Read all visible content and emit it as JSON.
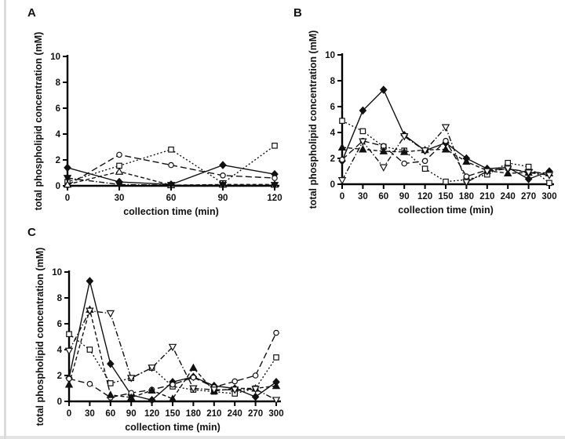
{
  "chart_data": [
    {
      "panel_label": "A",
      "type": "line",
      "title": "",
      "xlabel": "collection time (min)",
      "ylabel": "total phospholipid concentration (mM)",
      "x": [
        0,
        30,
        60,
        90,
        120
      ],
      "xlim": [
        0,
        120
      ],
      "ylim": [
        0,
        10
      ],
      "yticks": [
        0,
        2,
        4,
        6,
        8,
        10
      ],
      "grid": false,
      "legend": "none",
      "series": [
        {
          "name": "filled-diamond-solid",
          "marker": "diamond",
          "marker_fill": "filled",
          "line": "solid",
          "values": [
            1.4,
            0.3,
            0.1,
            1.6,
            0.9
          ]
        },
        {
          "name": "open-square-dotted",
          "marker": "square",
          "marker_fill": "open",
          "line": "dotted",
          "values": [
            0.3,
            1.55,
            2.8,
            0.2,
            3.1
          ]
        },
        {
          "name": "open-circle-long-dash",
          "marker": "circle",
          "marker_fill": "open",
          "line": "long-dash",
          "values": [
            0.05,
            2.4,
            1.6,
            0.8,
            0.6
          ]
        },
        {
          "name": "open-triangle-dash",
          "marker": "triangle-up",
          "marker_fill": "open",
          "line": "dash",
          "values": [
            0.1,
            1.1,
            0.05,
            0.1,
            0.1
          ]
        },
        {
          "name": "filled-inv-triangle-dashdot",
          "marker": "triangle-down",
          "marker_fill": "filled",
          "line": "dash-dot",
          "values": [
            0.6,
            0.1,
            0.05,
            0.05,
            0.05
          ]
        }
      ]
    },
    {
      "panel_label": "B",
      "type": "line",
      "title": "",
      "xlabel": "collection time (min)",
      "ylabel": "total phospholipid concentration (mM)",
      "x": [
        0,
        30,
        60,
        90,
        120,
        150,
        180,
        210,
        240,
        270,
        300
      ],
      "xlim": [
        0,
        300
      ],
      "ylim": [
        0,
        10
      ],
      "yticks": [
        0,
        2,
        4,
        6,
        8,
        10
      ],
      "grid": false,
      "legend": "none",
      "series": [
        {
          "name": "filled-diamond-solid",
          "marker": "diamond",
          "marker_fill": "filled",
          "line": "solid",
          "values": [
            1.8,
            5.7,
            7.3,
            3.8,
            2.6,
            3.2,
            2.0,
            1.2,
            1.3,
            0.4,
            1.0
          ]
        },
        {
          "name": "open-square-dotted",
          "marker": "square",
          "marker_fill": "open",
          "line": "dotted",
          "values": [
            4.9,
            4.1,
            2.9,
            2.6,
            1.2,
            0.2,
            0.35,
            0.75,
            1.65,
            1.35,
            0.1
          ]
        },
        {
          "name": "open-circle-long-dash",
          "marker": "circle",
          "marker_fill": "open",
          "line": "long-dash",
          "values": [
            1.9,
            3.35,
            2.95,
            1.6,
            1.8,
            3.35,
            0.6,
            1.1,
            1.2,
            0.95,
            0.85
          ]
        },
        {
          "name": "filled-triangle-dash",
          "marker": "triangle-up",
          "marker_fill": "filled",
          "line": "dash",
          "values": [
            2.85,
            2.7,
            2.55,
            2.5,
            2.65,
            2.7,
            1.75,
            1.05,
            0.85,
            0.9,
            0.85
          ]
        },
        {
          "name": "open-inv-triangle-dashdot",
          "marker": "triangle-down",
          "marker_fill": "open",
          "line": "dash-dot",
          "values": [
            0.3,
            3.3,
            1.3,
            3.7,
            2.6,
            4.4,
            0.15,
            1.0,
            1.2,
            0.9,
            0.7
          ]
        }
      ]
    },
    {
      "panel_label": "C",
      "type": "line",
      "title": "",
      "xlabel": "collection time (min)",
      "ylabel": "total phospholipid concentration (mM)",
      "x": [
        0,
        30,
        60,
        90,
        120,
        150,
        180,
        210,
        240,
        270,
        300
      ],
      "xlim": [
        0,
        300
      ],
      "ylim": [
        0,
        10
      ],
      "yticks": [
        0,
        2,
        4,
        6,
        8,
        10
      ],
      "grid": false,
      "legend": "none",
      "series": [
        {
          "name": "filled-diamond-solid",
          "marker": "diamond",
          "marker_fill": "filled",
          "line": "solid",
          "values": [
            1.8,
            9.3,
            2.9,
            0.5,
            0.1,
            1.5,
            1.9,
            1.2,
            1.0,
            0.35,
            1.5
          ]
        },
        {
          "name": "open-square-dotted",
          "marker": "square",
          "marker_fill": "open",
          "line": "dotted",
          "values": [
            5.2,
            4.0,
            1.4,
            1.8,
            2.6,
            1.15,
            0.9,
            0.75,
            0.6,
            1.0,
            3.4
          ]
        },
        {
          "name": "open-circle-long-dash",
          "marker": "circle",
          "marker_fill": "open",
          "line": "long-dash",
          "values": [
            1.75,
            1.35,
            0.3,
            0.65,
            0.9,
            1.3,
            1.85,
            1.1,
            1.55,
            2.0,
            5.3
          ]
        },
        {
          "name": "filled-triangle-dash",
          "marker": "triangle-up",
          "marker_fill": "filled",
          "line": "dash",
          "values": [
            1.3,
            7.1,
            0.5,
            0.3,
            0.85,
            0.2,
            2.6,
            0.8,
            1.0,
            1.0,
            1.2
          ]
        },
        {
          "name": "open-inv-triangle-dashdot",
          "marker": "triangle-down",
          "marker_fill": "open",
          "line": "dash-dot",
          "values": [
            3.9,
            7.0,
            6.8,
            1.8,
            2.6,
            4.2,
            1.0,
            0.9,
            0.9,
            0.95,
            0.1
          ]
        }
      ]
    }
  ],
  "style": {
    "ink_color": "#111111",
    "axis_color": "#000000",
    "background": "#ffffff"
  }
}
